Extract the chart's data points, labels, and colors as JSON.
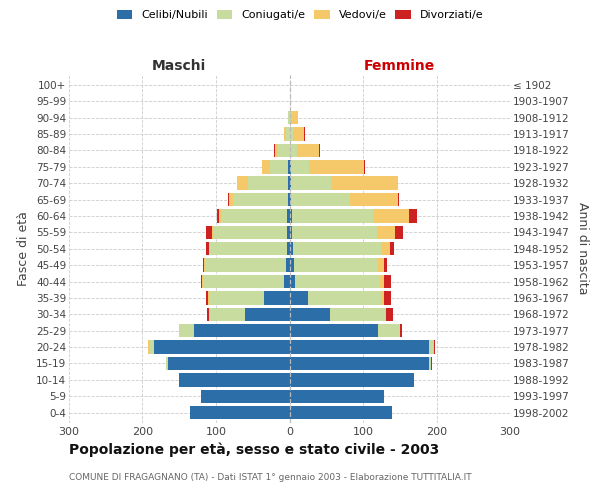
{
  "age_groups": [
    "0-4",
    "5-9",
    "10-14",
    "15-19",
    "20-24",
    "25-29",
    "30-34",
    "35-39",
    "40-44",
    "45-49",
    "50-54",
    "55-59",
    "60-64",
    "65-69",
    "70-74",
    "75-79",
    "80-84",
    "85-89",
    "90-94",
    "95-99",
    "100+"
  ],
  "birth_years": [
    "1998-2002",
    "1993-1997",
    "1988-1992",
    "1983-1987",
    "1978-1982",
    "1973-1977",
    "1968-1972",
    "1963-1967",
    "1958-1962",
    "1953-1957",
    "1948-1952",
    "1943-1947",
    "1938-1942",
    "1933-1937",
    "1928-1932",
    "1923-1927",
    "1918-1922",
    "1913-1917",
    "1908-1912",
    "1903-1907",
    "≤ 1902"
  ],
  "maschi_celibi": [
    135,
    120,
    150,
    165,
    185,
    130,
    60,
    35,
    8,
    5,
    4,
    4,
    3,
    2,
    2,
    2,
    0,
    0,
    0,
    0,
    0
  ],
  "maschi_coniugati": [
    0,
    0,
    0,
    3,
    5,
    20,
    50,
    75,
    110,
    110,
    105,
    100,
    90,
    75,
    55,
    25,
    15,
    5,
    2,
    0,
    0
  ],
  "maschi_vedovi": [
    0,
    0,
    0,
    0,
    2,
    0,
    0,
    1,
    1,
    1,
    1,
    2,
    3,
    5,
    15,
    10,
    5,
    3,
    0,
    0,
    0
  ],
  "maschi_divorziati": [
    0,
    0,
    0,
    0,
    0,
    1,
    2,
    3,
    2,
    2,
    3,
    8,
    3,
    2,
    0,
    0,
    1,
    0,
    0,
    0,
    0
  ],
  "femmine_celibi": [
    140,
    128,
    170,
    190,
    190,
    120,
    55,
    25,
    8,
    6,
    5,
    4,
    3,
    2,
    2,
    2,
    0,
    0,
    0,
    0,
    0
  ],
  "femmine_coniugati": [
    0,
    0,
    0,
    3,
    5,
    30,
    75,
    100,
    115,
    115,
    120,
    115,
    110,
    80,
    55,
    25,
    10,
    5,
    2,
    0,
    0
  ],
  "femmine_vedovi": [
    0,
    0,
    0,
    0,
    1,
    1,
    1,
    3,
    5,
    8,
    12,
    25,
    50,
    65,
    90,
    75,
    30,
    15,
    10,
    0,
    0
  ],
  "femmine_divorziati": [
    0,
    0,
    0,
    1,
    2,
    2,
    10,
    10,
    10,
    4,
    5,
    10,
    10,
    2,
    1,
    1,
    1,
    1,
    0,
    0,
    0
  ],
  "colors": {
    "celibi": "#2B6EA8",
    "coniugati": "#C8DCA0",
    "vedovi": "#F5C96A",
    "divorziati": "#CC2222"
  },
  "title": "Popolazione per età, sesso e stato civile - 2003",
  "subtitle": "COMUNE DI FRAGAGNANO (TA) - Dati ISTAT 1° gennaio 2003 - Elaborazione TUTTITALIA.IT",
  "label_maschi": "Maschi",
  "label_femmine": "Femmine",
  "ylabel_left": "Fasce di età",
  "ylabel_right": "Anni di nascita",
  "xlim": 300,
  "background_color": "#ffffff",
  "grid_color": "#cccccc",
  "bar_height": 0.82
}
